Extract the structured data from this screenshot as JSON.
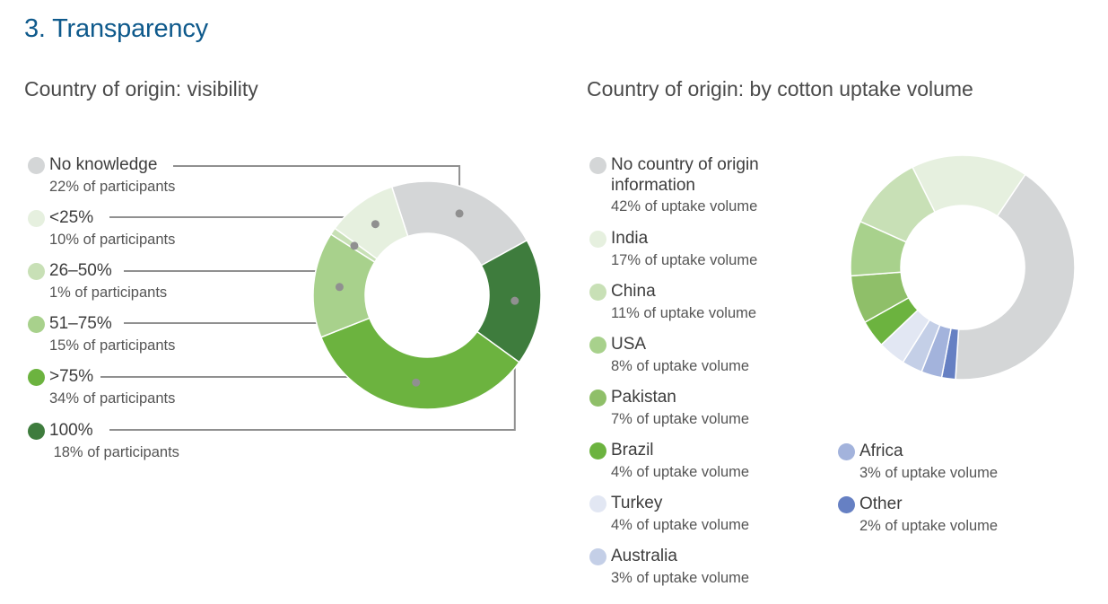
{
  "header": {
    "title": "3. Transparency"
  },
  "colors": {
    "grey": "#d4d6d7",
    "green_1": "#e6f0df",
    "green_2": "#c8e0b6",
    "green_3": "#a8d18c",
    "green_4": "#8fbf69",
    "green_5": "#6cb33f",
    "green_6": "#3e7c3d",
    "blue_1": "#e2e7f3",
    "blue_2": "#c4cfe7",
    "blue_3": "#a3b3dc",
    "blue_4": "#6680c3",
    "leader": "#909090"
  },
  "chart_data": [
    {
      "type": "pie",
      "title": "Country of origin: visibility",
      "slices": [
        {
          "label": "No knowledge",
          "value": 22,
          "sublabel": "22% of participants",
          "color": "#d4d6d7"
        },
        {
          "label": "100%",
          "value": 18,
          "sublabel": " 18% of participants",
          "color": "#3e7c3d"
        },
        {
          "label": ">75%",
          "value": 34,
          "sublabel": "34% of participants",
          "color": "#6cb33f"
        },
        {
          "label": "51–75%",
          "value": 15,
          "sublabel": "15% of participants",
          "color": "#a8d18c"
        },
        {
          "label": "26–50%",
          "value": 1,
          "sublabel": "1% of participants",
          "color": "#c8e0b6"
        },
        {
          "label": "<25%",
          "value": 10,
          "sublabel": "10% of participants",
          "color": "#e6f0df"
        }
      ]
    },
    {
      "type": "pie",
      "title": "Country of origin: by cotton uptake volume",
      "slices": [
        {
          "label": "No country of origin information",
          "label_lines": [
            "No country of origin",
            "information"
          ],
          "value": 42,
          "sublabel": "42% of uptake volume",
          "color": "#d4d6d7"
        },
        {
          "label": "Other",
          "value": 2,
          "sublabel": "2% of uptake volume",
          "color": "#6680c3"
        },
        {
          "label": "Africa",
          "value": 3,
          "sublabel": "3% of uptake volume",
          "color": "#a3b3dc"
        },
        {
          "label": "Australia",
          "value": 3,
          "sublabel": "3% of uptake volume",
          "color": "#c4cfe7"
        },
        {
          "label": "Turkey",
          "value": 4,
          "sublabel": "4% of uptake volume",
          "color": "#e2e7f3"
        },
        {
          "label": "Brazil",
          "value": 4,
          "sublabel": "4% of uptake volume",
          "color": "#6cb33f"
        },
        {
          "label": "Pakistan",
          "value": 7,
          "sublabel": "7% of uptake volume",
          "color": "#8fbf69"
        },
        {
          "label": "USA",
          "value": 8,
          "sublabel": "8% of uptake volume",
          "color": "#a8d18c"
        },
        {
          "label": "China",
          "value": 11,
          "sublabel": "11% of uptake volume",
          "color": "#c8e0b6"
        },
        {
          "label": "India",
          "value": 17,
          "sublabel": "17% of uptake volume",
          "color": "#e6f0df"
        }
      ]
    }
  ]
}
